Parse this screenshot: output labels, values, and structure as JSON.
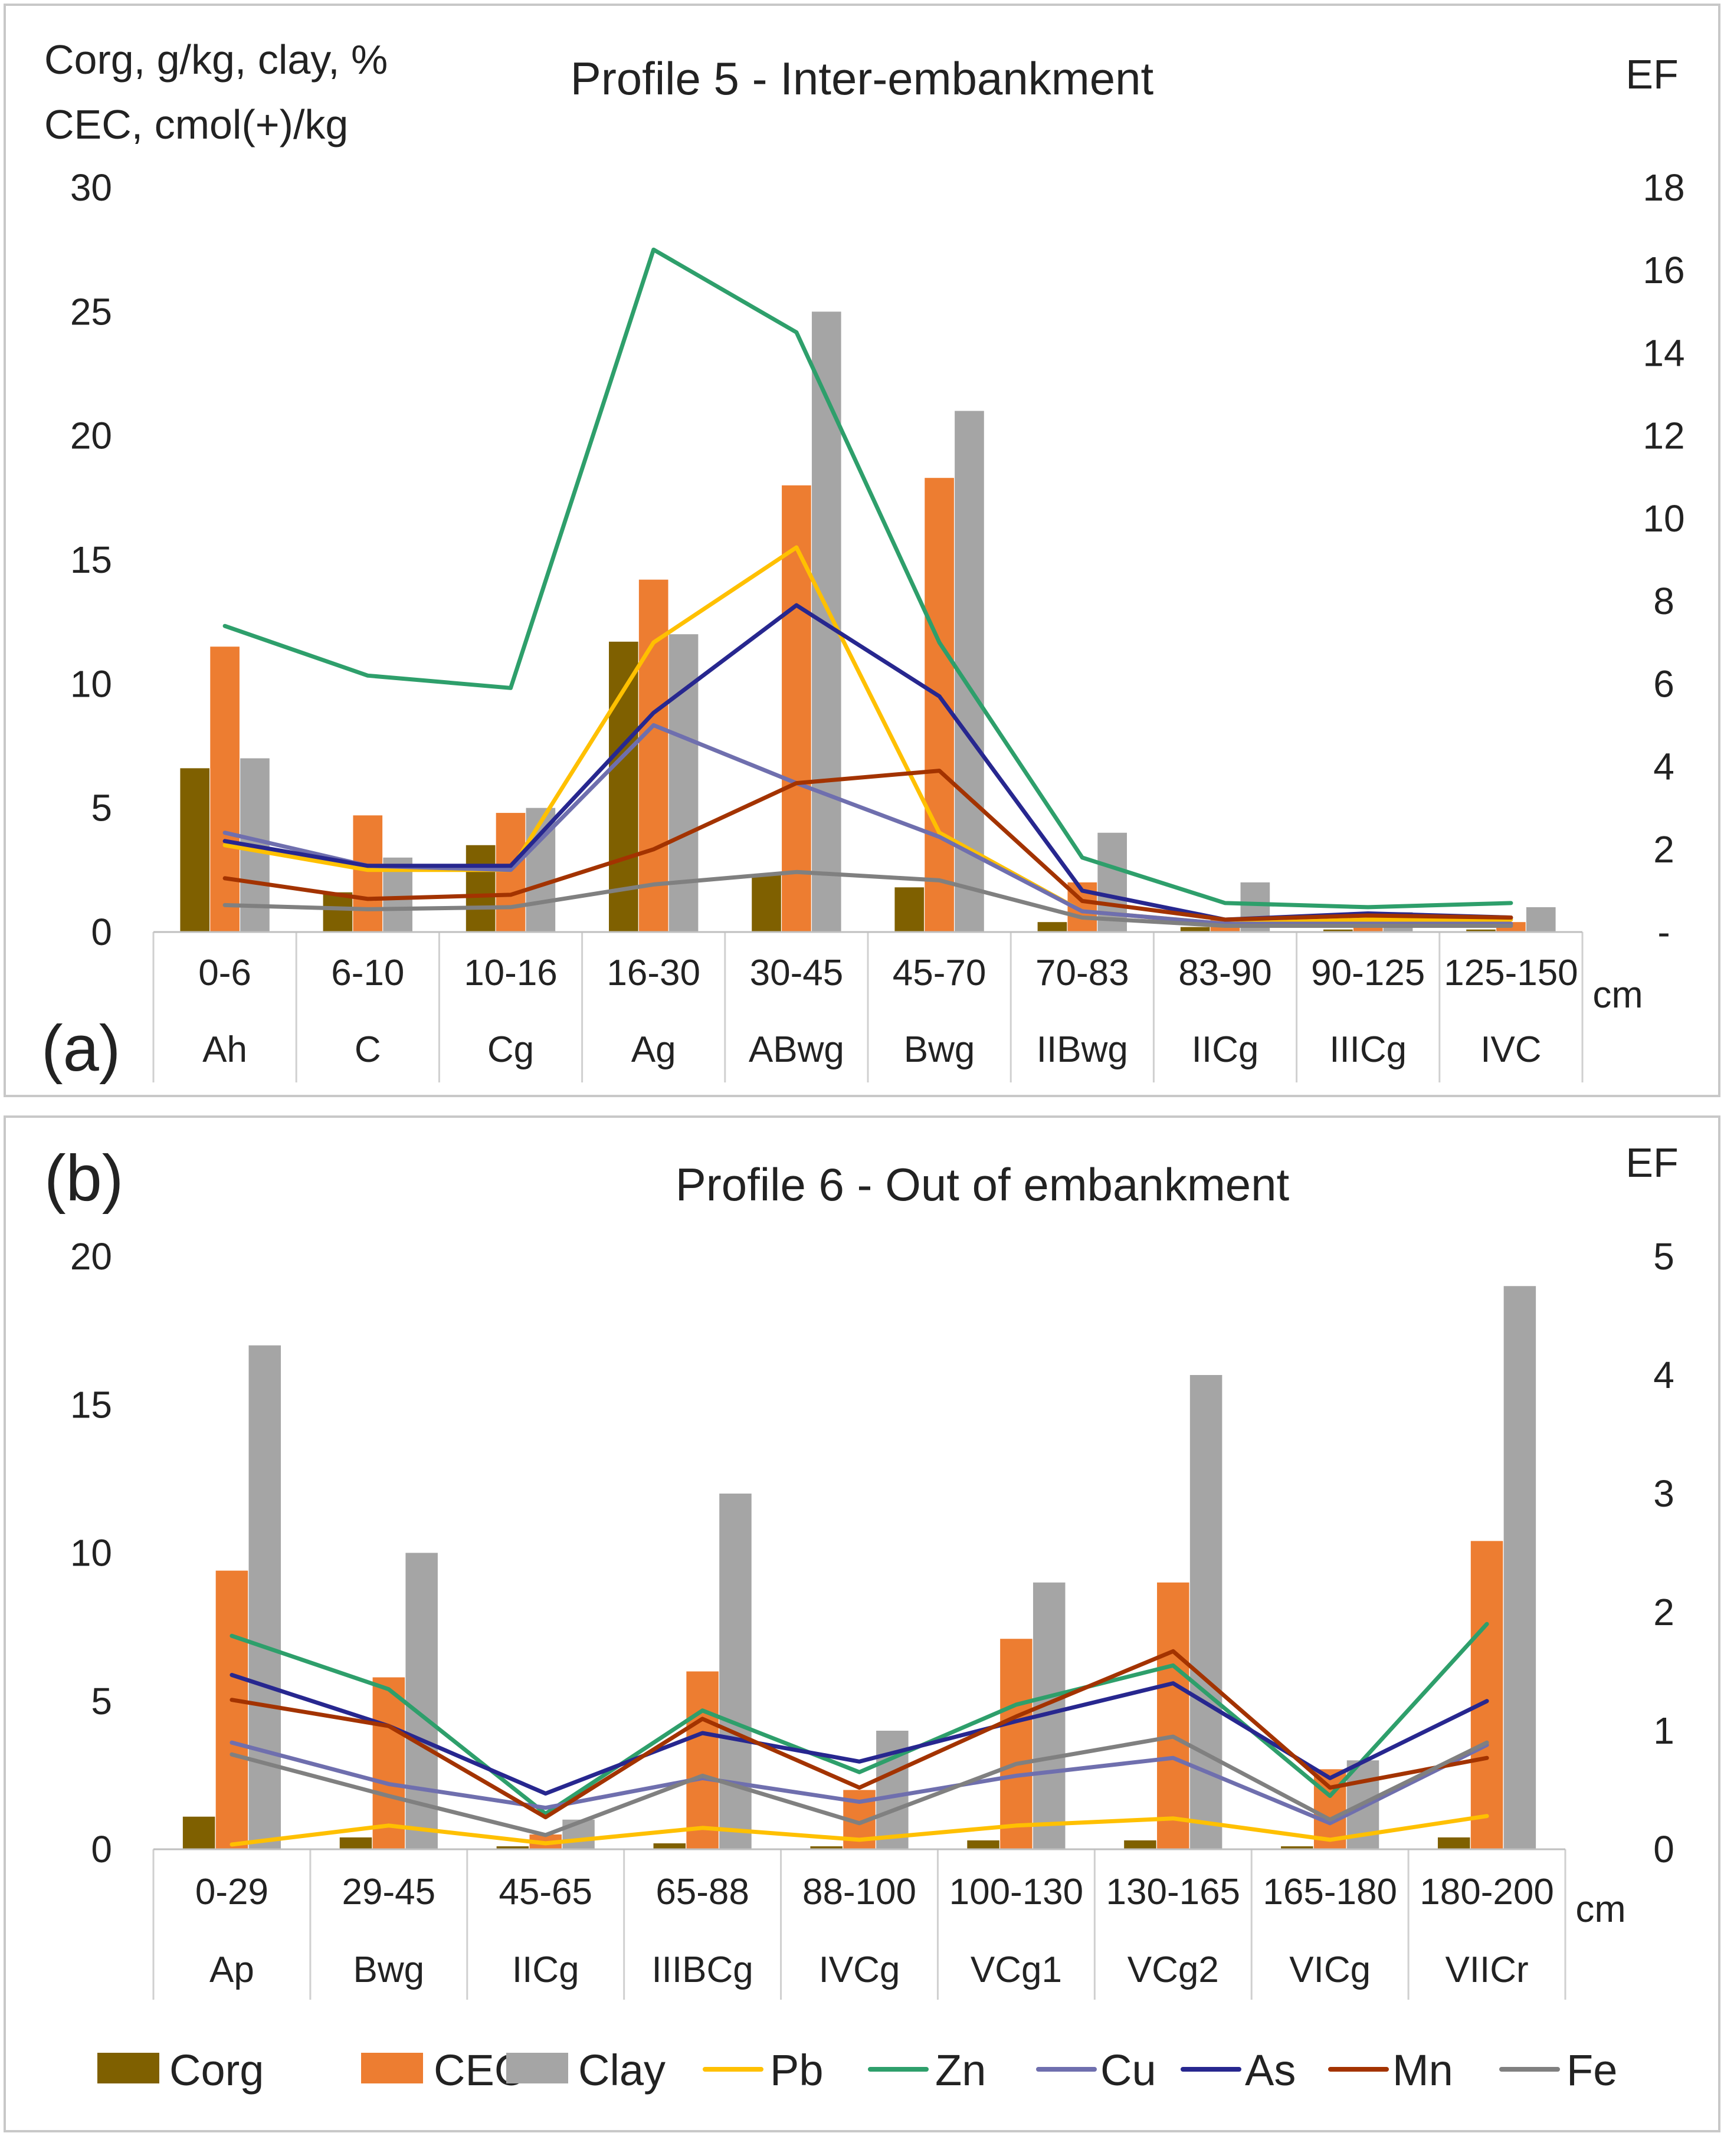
{
  "colors": {
    "Corg": "#7F6000",
    "CEC": "#ED7D31",
    "Clay": "#A5A5A5",
    "Pb": "#FFC000",
    "Zn": "#2E9F6B",
    "Cu": "#6F6FAE",
    "As": "#27278F",
    "Mn": "#A33300",
    "Fe": "#808080"
  },
  "legend": [
    "Corg",
    "CEC",
    "Clay",
    "Pb",
    "Zn",
    "Cu",
    "As",
    "Mn",
    "Fe"
  ],
  "chart_data": [
    {
      "type": "bar",
      "panel_label": "(a)",
      "title": "Profile 5 -  Inter-embankment",
      "ylabel_line1": "Corg, g/kg,  clay, %",
      "ylabel_line2": "CEC, cmol(+)/kg",
      "y2label": "EF",
      "xunit": "cm",
      "ylim": [
        0,
        30
      ],
      "yticks": [
        "0",
        "5",
        "10",
        "15",
        "20",
        "25",
        "30"
      ],
      "y2lim": [
        0,
        18
      ],
      "y2ticks": [
        "-",
        "2",
        "4",
        "6",
        "8",
        "10",
        "12",
        "14",
        "16",
        "18"
      ],
      "categories": [
        "0-6",
        "6-10",
        "10-16",
        "16-30",
        "30-45",
        "45-70",
        "70-83",
        "83-90",
        "90-125",
        "125-150"
      ],
      "horizons": [
        "Ah",
        "C",
        "Cg",
        "Ag",
        "ABwg",
        "Bwg",
        "IIBwg",
        "IICg",
        "IIICg",
        "IVC"
      ],
      "bar_series": [
        {
          "name": "Corg",
          "values": [
            6.6,
            1.6,
            3.5,
            11.7,
            2.3,
            1.8,
            0.4,
            0.2,
            0.1,
            0.1
          ]
        },
        {
          "name": "CEC",
          "values": [
            11.5,
            4.7,
            4.8,
            14.2,
            18.0,
            18.3,
            2.0,
            0.5,
            0.4,
            0.4
          ]
        },
        {
          "name": "Clay",
          "values": [
            7.0,
            3.0,
            5.0,
            12.0,
            25.0,
            21.0,
            4.0,
            2.0,
            0.8,
            1.0
          ]
        }
      ],
      "line_series": [
        {
          "name": "Pb",
          "values": [
            2.1,
            1.5,
            1.5,
            7.0,
            9.3,
            2.4,
            0.5,
            0.2,
            0.3,
            0.3
          ]
        },
        {
          "name": "Zn",
          "values": [
            7.4,
            6.2,
            5.9,
            16.5,
            14.5,
            7.0,
            1.8,
            0.7,
            0.6,
            0.7
          ]
        },
        {
          "name": "Cu",
          "values": [
            2.4,
            1.6,
            1.5,
            5.0,
            3.6,
            2.3,
            0.5,
            0.2,
            0.2,
            0.2
          ]
        },
        {
          "name": "As",
          "values": [
            2.2,
            1.6,
            1.6,
            5.3,
            7.9,
            5.7,
            1.0,
            0.3,
            0.45,
            0.35
          ]
        },
        {
          "name": "Mn",
          "values": [
            1.3,
            0.8,
            0.9,
            2.0,
            3.6,
            3.9,
            0.75,
            0.3,
            0.4,
            0.35
          ]
        },
        {
          "name": "Fe",
          "values": [
            0.65,
            0.55,
            0.6,
            1.15,
            1.45,
            1.25,
            0.35,
            0.15,
            0.15,
            0.15
          ]
        }
      ]
    },
    {
      "type": "bar",
      "panel_label": "(b)",
      "title": "Profile 6 -  Out of embankment",
      "y2label": "EF",
      "xunit": "cm",
      "ylim": [
        0,
        20
      ],
      "yticks": [
        "0",
        "5",
        "10",
        "15",
        "20"
      ],
      "y2lim": [
        0,
        5
      ],
      "y2ticks": [
        "0",
        "1",
        "2",
        "3",
        "4",
        "5"
      ],
      "categories": [
        "0-29",
        "29-45",
        "45-65",
        "65-88",
        "88-100",
        "100-130",
        "130-165",
        "165-180",
        "180-200"
      ],
      "horizons": [
        "Ap",
        "Bwg",
        "IICg",
        "IIIBCg",
        "IVCg",
        "VCg1",
        "VCg2",
        "VICg",
        "VIICr"
      ],
      "bar_series": [
        {
          "name": "Corg",
          "values": [
            1.1,
            0.4,
            0.1,
            0.2,
            0.1,
            0.3,
            0.3,
            0.1,
            0.4
          ]
        },
        {
          "name": "CEC",
          "values": [
            9.4,
            5.8,
            0.5,
            6.0,
            2.0,
            7.1,
            9.0,
            2.7,
            10.4
          ]
        },
        {
          "name": "Clay",
          "values": [
            17.0,
            10.0,
            1.0,
            12.0,
            4.0,
            9.0,
            16.0,
            3.0,
            19.0
          ]
        }
      ],
      "line_series": [
        {
          "name": "Pb",
          "values": [
            0.04,
            0.2,
            0.05,
            0.18,
            0.08,
            0.2,
            0.26,
            0.08,
            0.28
          ]
        },
        {
          "name": "Zn",
          "values": [
            1.8,
            1.35,
            0.3,
            1.17,
            0.65,
            1.22,
            1.55,
            0.45,
            1.9
          ]
        },
        {
          "name": "Cu",
          "values": [
            0.9,
            0.55,
            0.35,
            0.6,
            0.4,
            0.62,
            0.77,
            0.22,
            0.88
          ]
        },
        {
          "name": "As",
          "values": [
            1.47,
            1.04,
            0.47,
            0.98,
            0.74,
            1.08,
            1.4,
            0.6,
            1.25
          ]
        },
        {
          "name": "Mn",
          "values": [
            1.26,
            1.04,
            0.27,
            1.1,
            0.52,
            1.12,
            1.67,
            0.52,
            0.77
          ]
        },
        {
          "name": "Fe",
          "values": [
            0.8,
            0.45,
            0.12,
            0.62,
            0.22,
            0.72,
            0.95,
            0.25,
            0.9
          ]
        }
      ]
    }
  ]
}
